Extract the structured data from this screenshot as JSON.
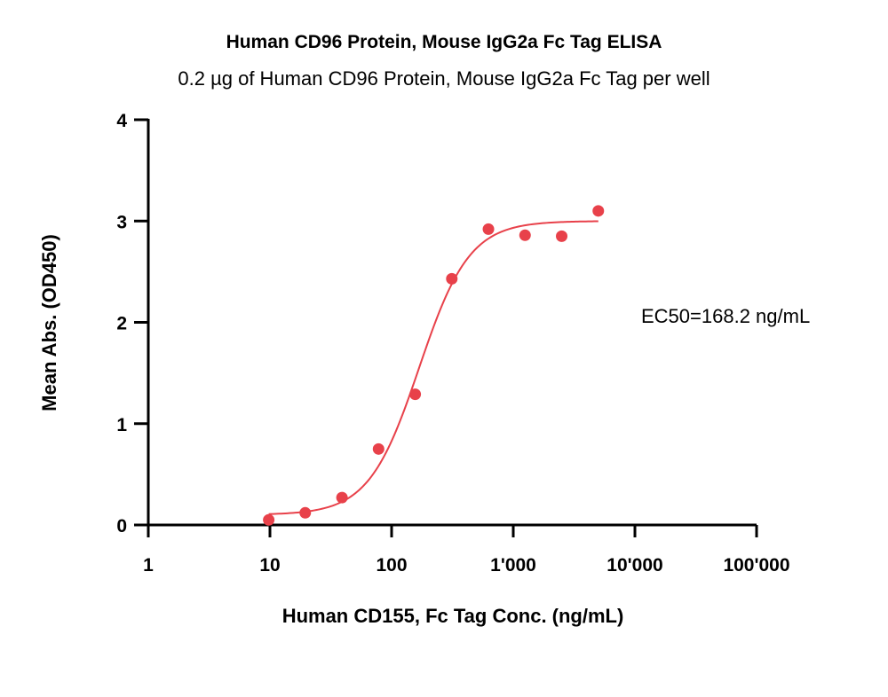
{
  "chart_data": {
    "type": "scatter",
    "title": "Human CD96 Protein, Mouse IgG2a Fc Tag ELISA",
    "subtitle": "0.2 µg of Human CD96 Protein, Mouse IgG2a Fc Tag per well",
    "xlabel": "Human CD155, Fc Tag Conc. (ng/mL)",
    "ylabel": "Mean Abs. (OD450)",
    "x_scale": "log",
    "xlim": [
      1,
      100000
    ],
    "ylim": [
      0,
      4
    ],
    "x_ticks": [
      1,
      10,
      100,
      1000,
      10000,
      100000
    ],
    "x_tick_labels": [
      "1",
      "10",
      "100",
      "1'000",
      "10'000",
      "100'000"
    ],
    "y_ticks": [
      0,
      1,
      2,
      3,
      4
    ],
    "y_tick_labels": [
      "0",
      "1",
      "2",
      "3",
      "4"
    ],
    "grid": false,
    "point_color": "#e8414a",
    "curve_color": "#e8414a",
    "annotation": "EC50=168.2 ng/mL",
    "series": [
      {
        "x": [
          9.77,
          19.5,
          39.1,
          78.1,
          156.3,
          312.5,
          625,
          1250,
          2500,
          5000
        ],
        "y": [
          0.05,
          0.12,
          0.27,
          0.75,
          1.29,
          2.43,
          2.92,
          2.86,
          2.85,
          3.1
        ]
      }
    ],
    "fit": {
      "x_range": [
        9.77,
        5000
      ],
      "bottom": 0.1,
      "top": 3.0,
      "ec50": 168.2,
      "hill": 2.1
    }
  }
}
